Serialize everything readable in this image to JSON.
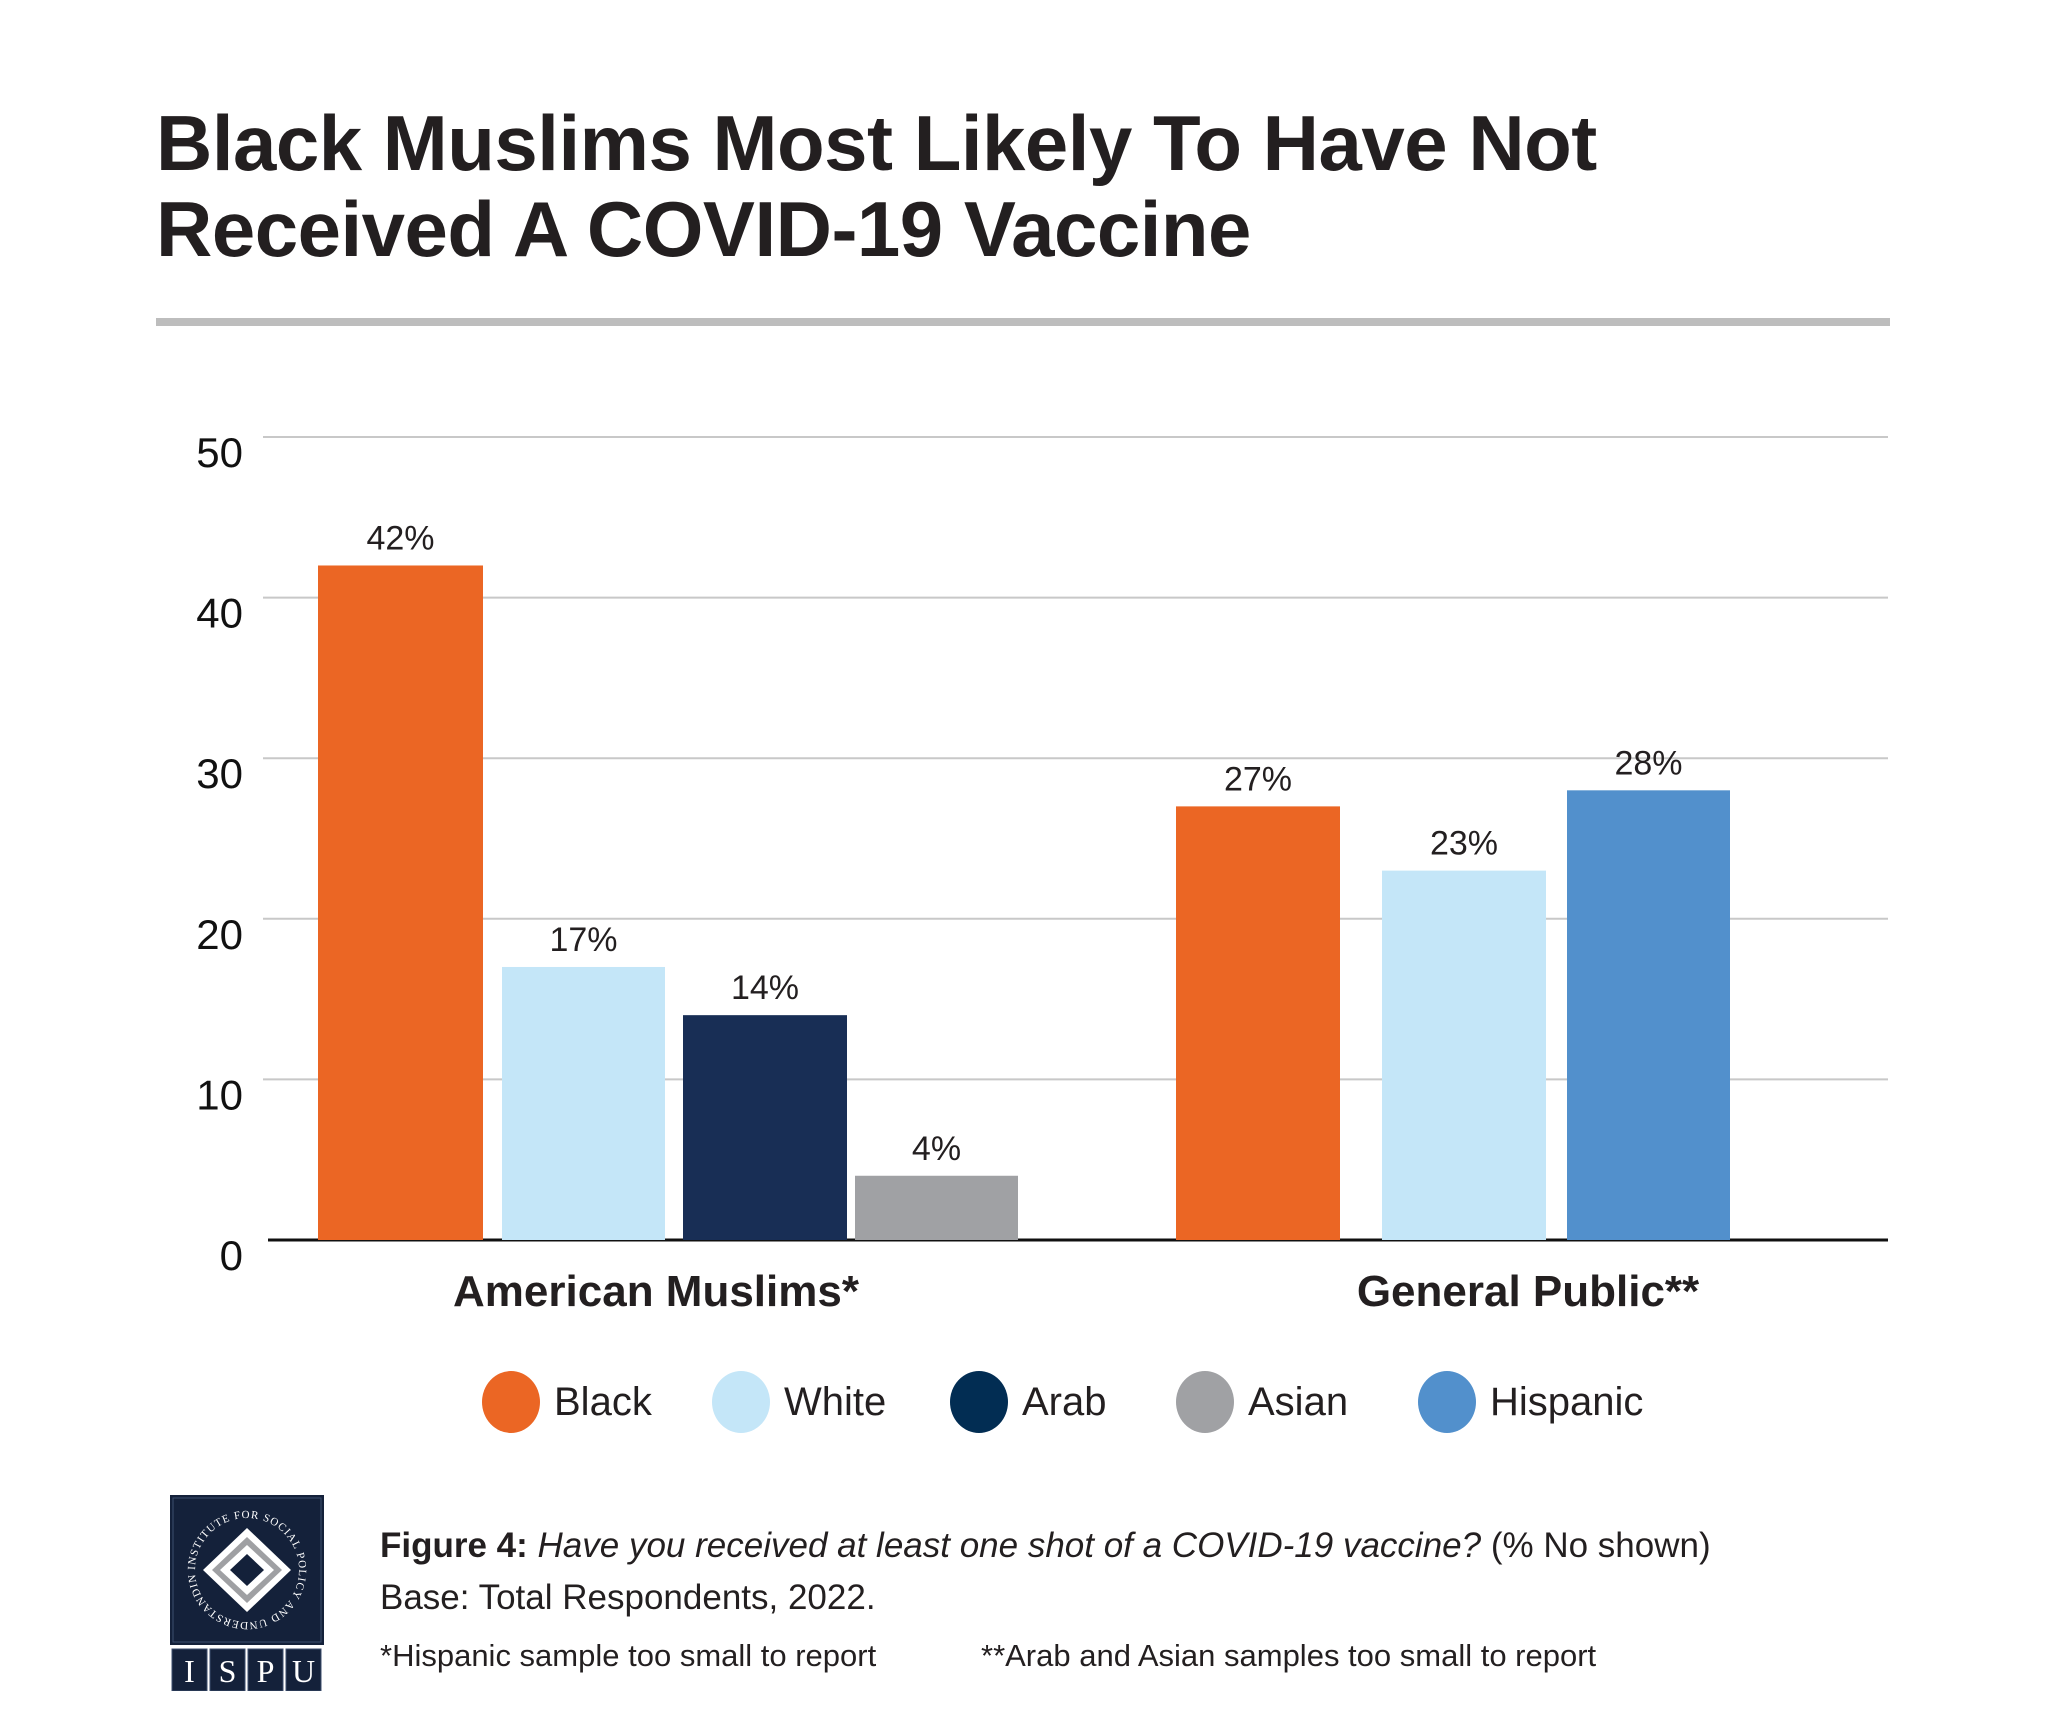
{
  "title": "Black Muslims Most Likely To Have Not Received A COVID-19 Vaccine",
  "colors": {
    "Black": "#EB6624",
    "White": "#C4E6F8",
    "Arab": "#182E55",
    "Asian": "#A0A1A4",
    "Hispanic": "#5290CC",
    "legend_arab": "#022D53",
    "text": "#231f20",
    "grid": "#c8c8c8",
    "divider": "#bdbdbd"
  },
  "chart_data": {
    "type": "bar",
    "title": "Black Muslims Most Likely To Have Not Received A COVID-19 Vaccine",
    "xlabel": "",
    "ylabel": "",
    "ylim": [
      0,
      50
    ],
    "yticks": [
      0,
      10,
      20,
      30,
      40,
      50
    ],
    "grid": true,
    "legend_position": "bottom",
    "categories": [
      "American Muslims*",
      "General Public**"
    ],
    "groups": [
      {
        "category": "American Muslims*",
        "bars": [
          {
            "series": "Black",
            "value": 42,
            "label": "42%"
          },
          {
            "series": "White",
            "value": 17,
            "label": "17%"
          },
          {
            "series": "Arab",
            "value": 14,
            "label": "14%"
          },
          {
            "series": "Asian",
            "value": 4,
            "label": "4%"
          }
        ]
      },
      {
        "category": "General Public**",
        "bars": [
          {
            "series": "Black",
            "value": 27,
            "label": "27%"
          },
          {
            "series": "White",
            "value": 23,
            "label": "23%"
          },
          {
            "series": "Hispanic",
            "value": 28,
            "label": "28%"
          }
        ]
      }
    ],
    "series": [
      {
        "name": "Black",
        "values": [
          42,
          27
        ]
      },
      {
        "name": "White",
        "values": [
          17,
          23
        ]
      },
      {
        "name": "Arab",
        "values": [
          14,
          null
        ]
      },
      {
        "name": "Asian",
        "values": [
          4,
          null
        ]
      },
      {
        "name": "Hispanic",
        "values": [
          null,
          28
        ]
      }
    ]
  },
  "legend": [
    {
      "label": "Black",
      "color": "#EB6624"
    },
    {
      "label": "White",
      "color": "#C4E6F8"
    },
    {
      "label": "Arab",
      "color": "#022D53"
    },
    {
      "label": "Asian",
      "color": "#A0A1A4"
    },
    {
      "label": "Hispanic",
      "color": "#5290CC"
    }
  ],
  "caption": {
    "figure_label": "Figure 4:",
    "question": "Have you received at least one shot of a COVID-19 vaccine?",
    "note": "(% No shown)",
    "base": "Base: Total Respondents, 2022."
  },
  "footnotes": [
    "*Hispanic sample too small to report",
    "**Arab and Asian samples too small to report"
  ],
  "logo": {
    "ring_text": "INSTITUTE FOR SOCIAL POLICY AND UNDERSTANDING",
    "letters": [
      "I",
      "S",
      "P",
      "U"
    ]
  }
}
